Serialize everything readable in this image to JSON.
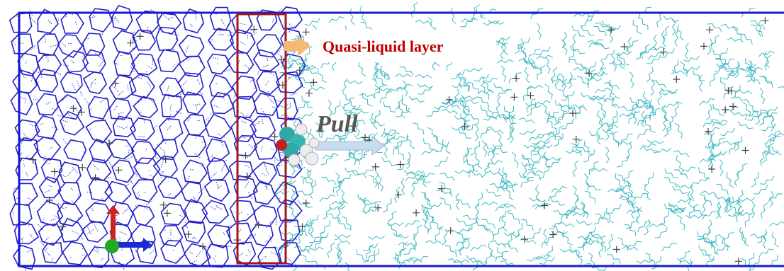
{
  "labels": {
    "layer": "Quasi-liquid layer",
    "action": "Pull"
  }
}
